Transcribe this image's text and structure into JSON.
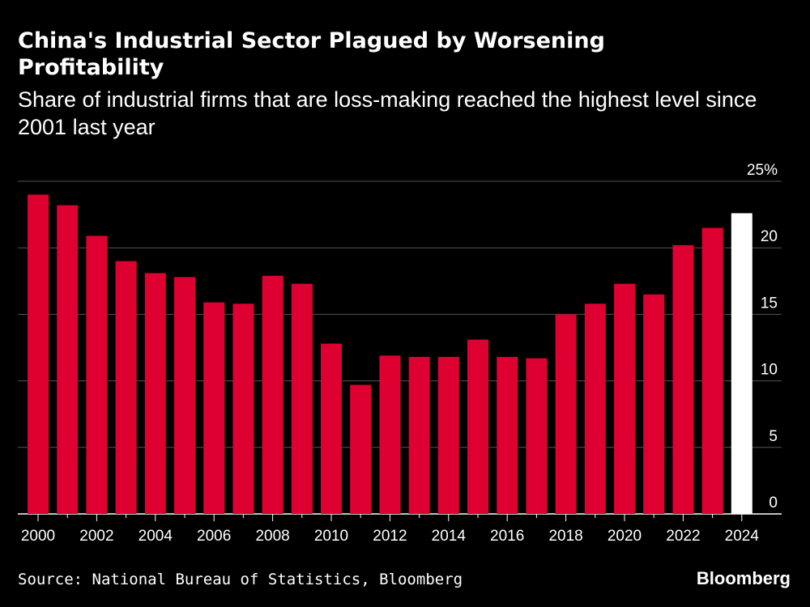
{
  "header": {
    "title": "China's Industrial Sector Plagued by Worsening Profitability",
    "subtitle": "Share of industrial firms that are loss-making reached the highest level since 2001 last year"
  },
  "footer": {
    "source": "Source: National Bureau of Statistics, Bloomberg",
    "brand": "Bloomberg"
  },
  "colors": {
    "background": "#000000",
    "bar": "#dd0030",
    "highlight_bar": "#ffffff",
    "gridline": "#555555",
    "text": "#ffffff"
  },
  "chart_data": {
    "type": "bar",
    "title": "China's Industrial Sector Plagued by Worsening Profitability",
    "subtitle": "Share of industrial firms that are loss-making reached the highest level since 2001 last year",
    "xlabel": "",
    "ylabel": "",
    "y_unit": "%",
    "ylim": [
      0,
      25
    ],
    "y_ticks": [
      0,
      5,
      10,
      15,
      20,
      25
    ],
    "y_tick_labels": [
      "0",
      "5",
      "10",
      "15",
      "20",
      "25%"
    ],
    "y_axis_position": "right",
    "grid": true,
    "x_tick_labels": [
      "2000",
      "2002",
      "2004",
      "2006",
      "2008",
      "2010",
      "2012",
      "2014",
      "2016",
      "2018",
      "2020",
      "2022",
      "2024"
    ],
    "categories": [
      2000,
      2001,
      2002,
      2003,
      2004,
      2005,
      2006,
      2007,
      2008,
      2009,
      2010,
      2011,
      2012,
      2013,
      2014,
      2015,
      2016,
      2017,
      2018,
      2019,
      2020,
      2021,
      2022,
      2023,
      2024
    ],
    "values": [
      24.0,
      23.2,
      20.9,
      19.0,
      18.1,
      17.8,
      15.9,
      15.8,
      17.9,
      17.3,
      12.8,
      9.7,
      11.9,
      11.8,
      11.8,
      13.1,
      11.8,
      11.7,
      15.0,
      15.8,
      17.3,
      16.5,
      20.2,
      21.5,
      22.6
    ],
    "highlight": [
      2024
    ]
  }
}
